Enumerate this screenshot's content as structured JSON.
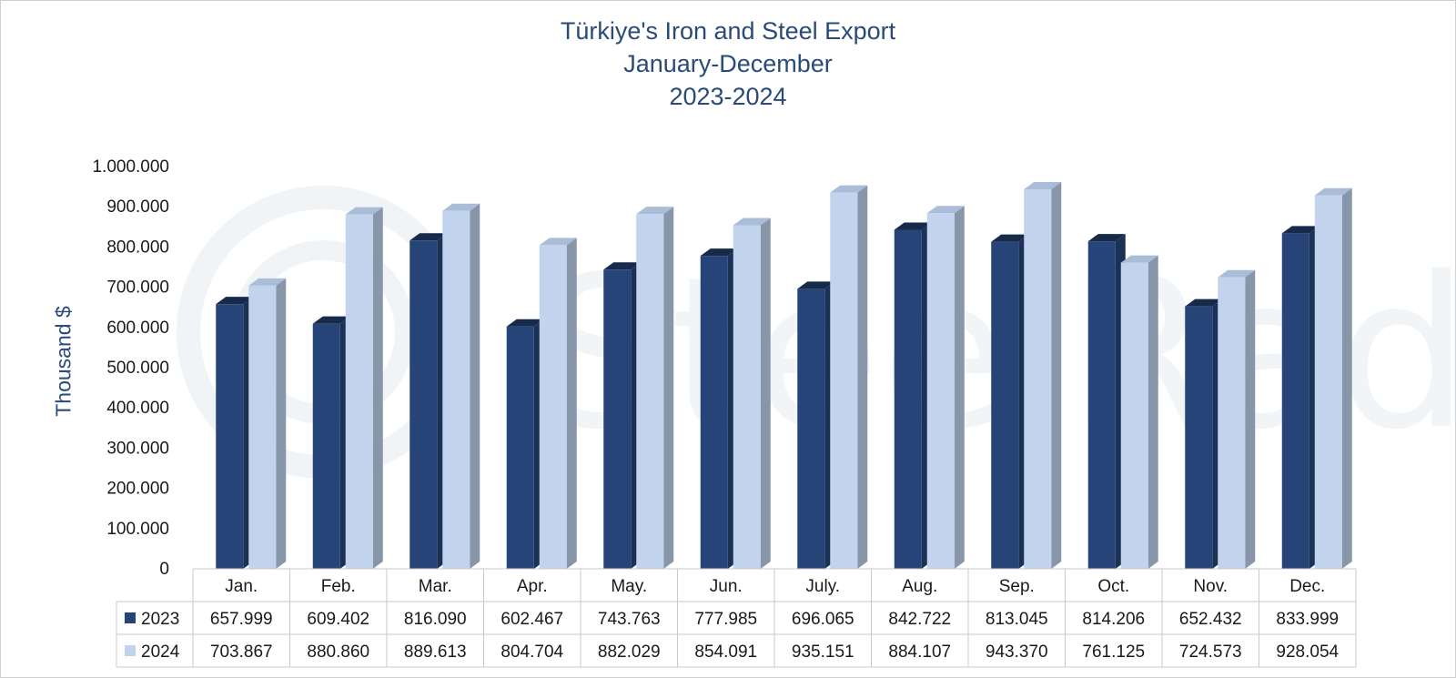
{
  "chart_data": {
    "type": "bar",
    "title": [
      "Türkiye's Iron and Steel Export",
      "January-December",
      "2023-2024"
    ],
    "ylabel": "Thousand $",
    "ylim": [
      0,
      1000000
    ],
    "yticks": [
      {
        "value": 0,
        "label": "0"
      },
      {
        "value": 100000,
        "label": "100.000"
      },
      {
        "value": 200000,
        "label": "200.000"
      },
      {
        "value": 300000,
        "label": "300.000"
      },
      {
        "value": 400000,
        "label": "400.000"
      },
      {
        "value": 500000,
        "label": "500.000"
      },
      {
        "value": 600000,
        "label": "600.000"
      },
      {
        "value": 700000,
        "label": "700.000"
      },
      {
        "value": 800000,
        "label": "800.000"
      },
      {
        "value": 900000,
        "label": "900.000"
      },
      {
        "value": 1000000,
        "label": "1.000.000"
      }
    ],
    "categories": [
      "Jan.",
      "Feb.",
      "Mar.",
      "Apr.",
      "May.",
      "Jun.",
      "July.",
      "Aug.",
      "Sep.",
      "Oct.",
      "Nov.",
      "Dec."
    ],
    "series": [
      {
        "name": "2023",
        "color": "#264478",
        "values": [
          657999,
          609402,
          816090,
          602467,
          743763,
          777985,
          696065,
          842722,
          813045,
          814206,
          652432,
          833999
        ],
        "labels": [
          "657.999",
          "609.402",
          "816.090",
          "602.467",
          "743.763",
          "777.985",
          "696.065",
          "842.722",
          "813.045",
          "814.206",
          "652.432",
          "833.999"
        ]
      },
      {
        "name": "2024",
        "color": "#c2d3ee",
        "values": [
          703867,
          880860,
          889613,
          804704,
          882029,
          854091,
          935151,
          884107,
          943370,
          761125,
          724573,
          928054
        ],
        "labels": [
          "703.867",
          "880.860",
          "889.613",
          "804.704",
          "882.029",
          "854.091",
          "935.151",
          "884.107",
          "943.370",
          "761.125",
          "724.573",
          "928.054"
        ]
      }
    ],
    "legend": "data-table",
    "grid": false,
    "watermark": "SteelRadar"
  }
}
